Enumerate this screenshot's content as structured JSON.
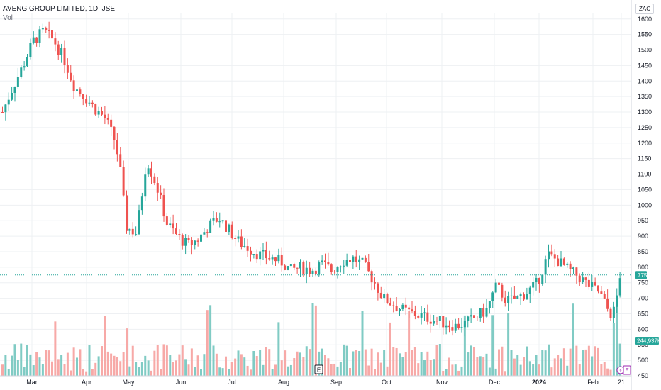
{
  "header": {
    "symbol_title": "AVENG GROUP LIMITED, 1D, JSE",
    "volume_label": "Vol",
    "currency": "ZAC"
  },
  "badges": {
    "earnings": "E",
    "flash": "⚡"
  },
  "colors": {
    "up": "#26a69a",
    "down": "#ef5350",
    "up_volume": "#80cbc4",
    "down_volume": "#f7a9a7",
    "grid": "#eef0f3",
    "price_badge": "#26a69a"
  },
  "chart_data": {
    "type": "candlestick",
    "title": "AVENG GROUP LIMITED, 1D, JSE",
    "currency": "ZAC",
    "y_range": [
      450,
      1620
    ],
    "y_ticks": [
      450,
      500,
      550,
      600,
      650,
      700,
      750,
      800,
      850,
      900,
      950,
      1000,
      1050,
      1100,
      1150,
      1200,
      1250,
      1300,
      1350,
      1400,
      1450,
      1500,
      1550,
      1600
    ],
    "x_labels": [
      "Mar",
      "Apr",
      "May",
      "Jun",
      "Jul",
      "Aug",
      "Sep",
      "Oct",
      "Nov",
      "Dec",
      "2024",
      "Feb",
      "21"
    ],
    "last_price": 775,
    "last_volume_label": "244,937K",
    "price_path": [
      [
        0,
        1300
      ],
      [
        2,
        1380
      ],
      [
        4,
        1450
      ],
      [
        6,
        1530
      ],
      [
        8,
        1560
      ],
      [
        10,
        1530
      ],
      [
        12,
        1470
      ],
      [
        14,
        1380
      ],
      [
        16,
        1350
      ],
      [
        18,
        1310
      ],
      [
        20,
        1280
      ],
      [
        22,
        1200
      ],
      [
        23,
        1100
      ],
      [
        24,
        930
      ],
      [
        26,
        910
      ],
      [
        27,
        1020
      ],
      [
        28,
        1150
      ],
      [
        30,
        1060
      ],
      [
        32,
        940
      ],
      [
        34,
        900
      ],
      [
        36,
        870
      ],
      [
        38,
        890
      ],
      [
        40,
        930
      ],
      [
        42,
        960
      ],
      [
        44,
        920
      ],
      [
        46,
        880
      ],
      [
        48,
        860
      ],
      [
        50,
        840
      ],
      [
        52,
        830
      ],
      [
        54,
        820
      ],
      [
        56,
        790
      ],
      [
        58,
        800
      ],
      [
        60,
        790
      ],
      [
        62,
        810
      ],
      [
        64,
        790
      ],
      [
        66,
        820
      ],
      [
        68,
        830
      ],
      [
        70,
        810
      ],
      [
        72,
        760
      ],
      [
        74,
        700
      ],
      [
        76,
        680
      ],
      [
        78,
        660
      ],
      [
        80,
        650
      ],
      [
        82,
        640
      ],
      [
        84,
        630
      ],
      [
        86,
        620
      ],
      [
        88,
        610
      ],
      [
        90,
        620
      ],
      [
        92,
        640
      ],
      [
        94,
        660
      ],
      [
        96,
        740
      ],
      [
        98,
        690
      ],
      [
        100,
        700
      ],
      [
        102,
        720
      ],
      [
        104,
        750
      ],
      [
        106,
        840
      ],
      [
        108,
        820
      ],
      [
        110,
        790
      ],
      [
        112,
        770
      ],
      [
        114,
        740
      ],
      [
        116,
        720
      ],
      [
        118,
        650
      ],
      [
        119,
        660
      ],
      [
        120,
        775
      ]
    ]
  }
}
